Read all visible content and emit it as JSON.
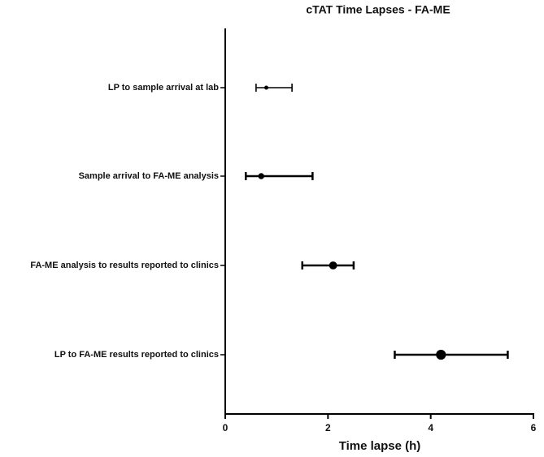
{
  "chart_data": {
    "type": "errorbar-dot",
    "title": "cTAT Time Lapses - FA-ME",
    "x_label": "Time lapse (h)",
    "categories": [
      "LP to sample arrival at lab",
      "Sample arrival to FA-ME analysis",
      "FA-ME analysis to results reported to clinics",
      "LP to FA-ME results reported to clinics"
    ],
    "values": [
      0.8,
      0.7,
      2.1,
      4.2
    ],
    "lower": [
      0.6,
      0.4,
      1.5,
      3.3
    ],
    "upper": [
      1.3,
      1.7,
      2.5,
      5.5
    ],
    "color": "#000000",
    "xlim": [
      0,
      6
    ],
    "xticks": [
      0,
      2,
      4,
      6
    ]
  }
}
